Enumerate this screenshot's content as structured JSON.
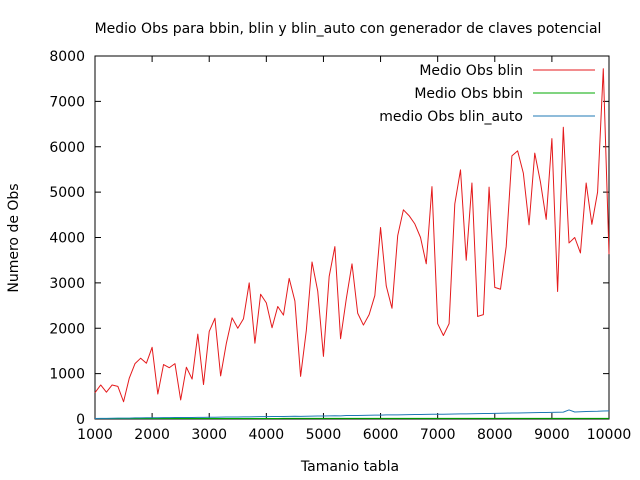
{
  "chart_data": {
    "type": "line",
    "title": "Medio Obs para bbin, blin y blin_auto con generador de claves potencial",
    "xlabel": "Tamanio tabla",
    "ylabel": "Numero de Obs",
    "xlim": [
      1000,
      10000
    ],
    "ylim": [
      0,
      8000
    ],
    "x_ticks": [
      1000,
      2000,
      3000,
      4000,
      5000,
      6000,
      7000,
      8000,
      9000,
      10000
    ],
    "y_ticks": [
      0,
      1000,
      2000,
      3000,
      4000,
      5000,
      6000,
      7000,
      8000
    ],
    "grid": false,
    "legend_position": "top-right",
    "x": [
      1000,
      1100,
      1200,
      1300,
      1400,
      1500,
      1600,
      1700,
      1800,
      1900,
      2000,
      2100,
      2200,
      2300,
      2400,
      2500,
      2600,
      2700,
      2800,
      2900,
      3000,
      3100,
      3200,
      3300,
      3400,
      3500,
      3600,
      3700,
      3800,
      3900,
      4000,
      4100,
      4200,
      4300,
      4400,
      4500,
      4600,
      4700,
      4800,
      4900,
      5000,
      5100,
      5200,
      5300,
      5400,
      5500,
      5600,
      5700,
      5800,
      5900,
      6000,
      6100,
      6200,
      6300,
      6400,
      6500,
      6600,
      6700,
      6800,
      6900,
      7000,
      7100,
      7200,
      7300,
      7400,
      7500,
      7600,
      7700,
      7800,
      7900,
      8000,
      8100,
      8200,
      8300,
      8400,
      8500,
      8600,
      8700,
      8800,
      8900,
      9000,
      9100,
      9200,
      9300,
      9400,
      9500,
      9600,
      9700,
      9800,
      9900,
      10000
    ],
    "series": [
      {
        "name": "Medio Obs blin",
        "color": "#e41a1c",
        "values": [
          580,
          750,
          590,
          750,
          720,
          380,
          900,
          1220,
          1340,
          1230,
          1580,
          550,
          1200,
          1130,
          1220,
          420,
          1140,
          880,
          1870,
          760,
          1930,
          2220,
          950,
          1670,
          2230,
          2000,
          2210,
          3000,
          1670,
          2750,
          2560,
          2010,
          2480,
          2290,
          3100,
          2600,
          940,
          1950,
          3460,
          2820,
          1380,
          3140,
          3800,
          1770,
          2650,
          3420,
          2330,
          2070,
          2300,
          2720,
          4220,
          2930,
          2440,
          4040,
          4610,
          4480,
          4300,
          4000,
          3420,
          5120,
          2100,
          1840,
          2100,
          4740,
          5490,
          3500,
          5200,
          2260,
          2300,
          5110,
          2900,
          2860,
          3800,
          5800,
          5910,
          5420,
          4280,
          5860,
          5220,
          4400,
          6180,
          2810,
          6430,
          3880,
          4000,
          3660,
          5200,
          4290,
          5000,
          7720,
          3630
        ]
      },
      {
        "name": "Medio Obs bbin",
        "color": "#00aa00",
        "values": [
          10,
          10,
          10,
          10,
          11,
          11,
          11,
          11,
          11,
          11,
          11,
          11,
          11,
          11,
          12,
          12,
          12,
          12,
          12,
          12,
          12,
          12,
          12,
          12,
          12,
          12,
          12,
          12,
          12,
          12,
          12,
          12,
          12,
          13,
          13,
          13,
          13,
          13,
          13,
          13,
          13,
          13,
          13,
          13,
          13,
          13,
          13,
          13,
          13,
          13,
          13,
          13,
          13,
          13,
          13,
          13,
          13,
          13,
          13,
          13,
          13,
          13,
          13,
          13,
          14,
          14,
          14,
          14,
          14,
          14,
          14,
          14,
          14,
          14,
          14,
          14,
          14,
          14,
          14,
          14,
          14,
          14,
          14,
          14,
          14,
          14,
          14,
          14,
          14,
          14,
          14
        ]
      },
      {
        "name": "medio Obs blin_auto",
        "color": "#1f78b4",
        "values": [
          12,
          14,
          15,
          16,
          18,
          18,
          20,
          24,
          26,
          27,
          28,
          28,
          30,
          31,
          32,
          32,
          34,
          34,
          36,
          36,
          40,
          38,
          42,
          44,
          44,
          45,
          46,
          48,
          50,
          52,
          52,
          54,
          55,
          56,
          58,
          60,
          58,
          62,
          64,
          66,
          66,
          70,
          72,
          70,
          76,
          78,
          78,
          80,
          84,
          86,
          86,
          90,
          92,
          92,
          94,
          96,
          98,
          100,
          102,
          104,
          104,
          106,
          108,
          110,
          112,
          112,
          116,
          118,
          120,
          120,
          124,
          126,
          130,
          132,
          132,
          136,
          138,
          140,
          142,
          144,
          146,
          150,
          152,
          200,
          154,
          160,
          166,
          168,
          170,
          175,
          180
        ]
      }
    ]
  }
}
